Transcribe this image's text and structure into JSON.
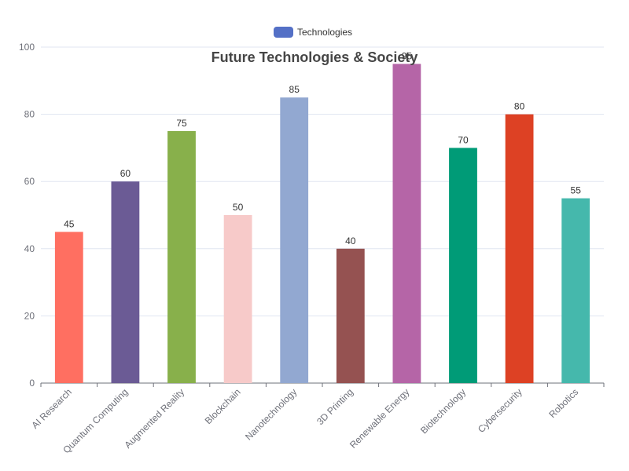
{
  "chart_data": {
    "type": "bar",
    "title": "Future Technologies & Society",
    "legend": {
      "placement": "top-center",
      "entries": [
        "Technologies"
      ]
    },
    "categories": [
      "AI Research",
      "Quantum Computing",
      "Augmented Reality",
      "Blockchain",
      "Nanotechnology",
      "3D Printing",
      "Renewable Energy",
      "Biotechnology",
      "Cybersecurity",
      "Robotics"
    ],
    "series": [
      {
        "name": "Technologies",
        "values": [
          45,
          60,
          75,
          50,
          85,
          40,
          95,
          70,
          80,
          55
        ]
      }
    ],
    "bar_colors": [
      "#ff6f61",
      "#6b5b95",
      "#88b04b",
      "#f7cac9",
      "#92a8d1",
      "#955251",
      "#b565a7",
      "#009b77",
      "#dd4124",
      "#45b8ac"
    ],
    "legend_color": "#5470c6",
    "ylim": [
      0,
      100
    ],
    "yticks": [
      0,
      20,
      40,
      60,
      80,
      100
    ],
    "grid": true,
    "xlabel": "",
    "ylabel": ""
  }
}
